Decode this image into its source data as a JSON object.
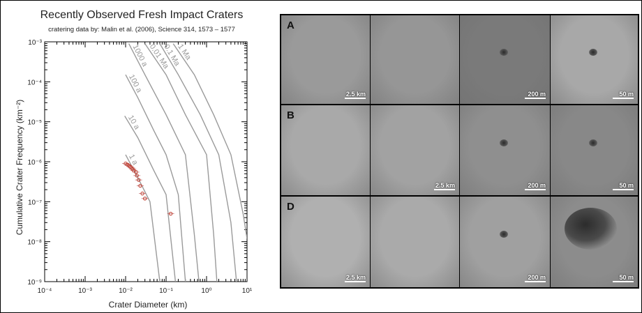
{
  "chart_data": {
    "type": "line",
    "title": "Recently Observed Fresh Impact Craters",
    "subtitle": "cratering data by: Malin et al. (2006), Science 314, 1573 – 1577",
    "xlabel": "Crater Diameter (km)",
    "ylabel": "Cumulative Crater Frequency (km⁻²)",
    "xscale": "log",
    "yscale": "log",
    "xlim": [
      0.0001,
      10
    ],
    "ylim": [
      1e-09,
      0.001
    ],
    "x_tick_labels": [
      "10⁻⁴",
      "10⁻³",
      "10⁻²",
      "10⁻¹",
      "10⁰",
      "10¹"
    ],
    "y_tick_labels": [
      "10⁻⁹",
      "10⁻⁸",
      "10⁻⁷",
      "10⁻⁶",
      "10⁻⁵",
      "10⁻⁴",
      "10⁻³"
    ],
    "isochrons": [
      {
        "label": "1 a",
        "points": [
          [
            0.01,
            1.5e-06
          ],
          [
            0.02,
            4e-07
          ],
          [
            0.04,
            1e-07
          ],
          [
            0.07,
            1e-09
          ]
        ]
      },
      {
        "label": "10 a",
        "points": [
          [
            0.0095,
            1.4e-05
          ],
          [
            0.02,
            4e-06
          ],
          [
            0.05,
            6e-07
          ],
          [
            0.1,
            1.5e-07
          ],
          [
            0.17,
            1e-09
          ]
        ]
      },
      {
        "label": "100 a",
        "points": [
          [
            0.01,
            0.00015
          ],
          [
            0.02,
            4e-05
          ],
          [
            0.05,
            6e-06
          ],
          [
            0.1,
            1.5e-06
          ],
          [
            0.2,
            1.5e-07
          ],
          [
            0.3,
            1e-09
          ]
        ]
      },
      {
        "label": "1000 a",
        "points": [
          [
            0.012,
            0.0009
          ],
          [
            0.03,
            0.00015
          ],
          [
            0.1,
            1.5e-05
          ],
          [
            0.3,
            1.5e-06
          ],
          [
            0.5,
            1.5e-08
          ],
          [
            0.65,
            1e-09
          ]
        ]
      },
      {
        "label": "0.01 Ma",
        "points": [
          [
            0.03,
            0.0009
          ],
          [
            0.1,
            0.00015
          ],
          [
            0.3,
            1.5e-05
          ],
          [
            1.0,
            1.5e-06
          ],
          [
            1.5,
            1.5e-08
          ],
          [
            1.8,
            1e-09
          ]
        ]
      },
      {
        "label": "0.1 Ma",
        "points": [
          [
            0.07,
            0.0009
          ],
          [
            0.2,
            0.00015
          ],
          [
            0.7,
            1.5e-05
          ],
          [
            2.0,
            1.5e-06
          ],
          [
            4.0,
            3e-08
          ],
          [
            5.5,
            1e-09
          ]
        ]
      },
      {
        "label": "1 Ma",
        "points": [
          [
            0.15,
            0.0009
          ],
          [
            0.5,
            0.00015
          ],
          [
            1.5,
            1.5e-05
          ],
          [
            4.0,
            1.5e-06
          ],
          [
            8.0,
            5e-08
          ],
          [
            10.0,
            1.2e-08
          ]
        ]
      }
    ],
    "observed": {
      "x": [
        0.01,
        0.011,
        0.012,
        0.013,
        0.014,
        0.015,
        0.016,
        0.018,
        0.019,
        0.021,
        0.023,
        0.026,
        0.03,
        0.13
      ],
      "y": [
        9e-07,
        8.5e-07,
        8e-07,
        7.5e-07,
        7e-07,
        6.5e-07,
        6e-07,
        5.5e-07,
        4.5e-07,
        3.5e-07,
        2.5e-07,
        1.6e-07,
        1.2e-07,
        5e-08
      ]
    },
    "grid": false,
    "legend": "none"
  },
  "panel": {
    "rows": [
      {
        "label": "A",
        "scales": [
          "2.5 km",
          "",
          "200 m",
          "50 m"
        ],
        "tones": [
          "#9a9a9a",
          "#969696",
          "#7a7a7a",
          "#a8a8a8"
        ]
      },
      {
        "label": "B",
        "scales": [
          "",
          "2.5 km",
          "200 m",
          "50 m"
        ],
        "tones": [
          "#a9a9a9",
          "#a2a2a2",
          "#8f8f8f",
          "#888888"
        ]
      },
      {
        "label": "D",
        "scales": [
          "2.5 km",
          "",
          "200 m",
          "50 m"
        ],
        "tones": [
          "#b0b0b0",
          "#aaaaaa",
          "#a0a0a0",
          "#8c8c8c"
        ]
      }
    ]
  }
}
